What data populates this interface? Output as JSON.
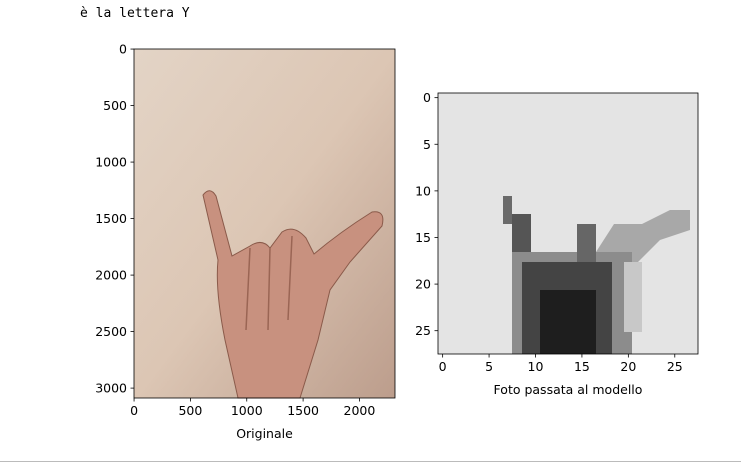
{
  "output": {
    "text": "è la lettera Y"
  },
  "plots": [
    {
      "xlabel": "Originale",
      "xlim": [
        -0.5,
        2315.5
      ],
      "ylim": [
        3087.5,
        -0.5
      ],
      "xticks": [
        0,
        500,
        1000,
        1500,
        2000
      ],
      "yticks": [
        0,
        500,
        1000,
        1500,
        2000,
        2500,
        3000
      ]
    },
    {
      "xlabel": "Foto passata al modello",
      "xlim": [
        -0.5,
        27.5
      ],
      "ylim": [
        27.5,
        -0.5
      ],
      "xticks": [
        0,
        5,
        10,
        15,
        20,
        25
      ],
      "yticks": [
        0,
        5,
        10,
        15,
        20,
        25
      ]
    }
  ]
}
